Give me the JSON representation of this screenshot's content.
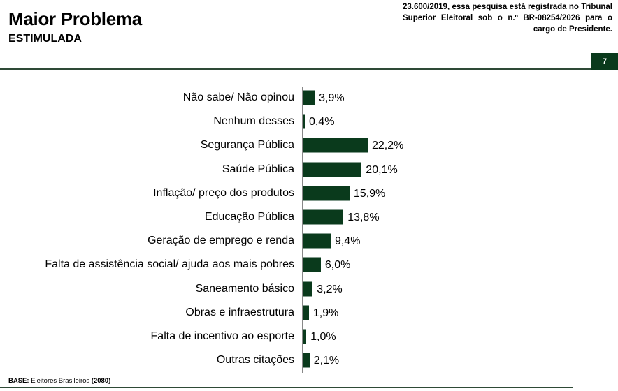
{
  "header": {
    "title": "Maior Problema",
    "subtitle": "ESTIMULADA",
    "registration_note": "23.600/2019, essa pesquisa está registrada no Tribunal Superior Eleitoral sob o n.º BR-08254/2026 para o cargo de Presidente.",
    "page_number": "7"
  },
  "footer": {
    "base_label": "BASE:",
    "base_text": "Eleitores Brasileiros",
    "base_count": "(2080)"
  },
  "colors": {
    "bar": "#0a3a1c",
    "rule": "#2e4a36"
  },
  "chart_data": {
    "type": "bar",
    "orientation": "horizontal",
    "categories": [
      "Não sabe/ Não opinou",
      "Nenhum desses",
      "Segurança Pública",
      "Saúde Pública",
      "Inflação/ preço dos produtos",
      "Educação Pública",
      "Geração de emprego e renda",
      "Falta de assistência social/ ajuda aos mais pobres",
      "Saneamento básico",
      "Obras e infraestrutura",
      "Falta de incentivo ao esporte",
      "Outras citações"
    ],
    "values": [
      3.9,
      0.4,
      22.2,
      20.1,
      15.9,
      13.8,
      9.4,
      6.0,
      3.2,
      1.9,
      1.0,
      2.1
    ],
    "value_labels": [
      "3,9%",
      "0,4%",
      "22,2%",
      "20,1%",
      "15,9%",
      "13,8%",
      "9,4%",
      "6,0%",
      "3,2%",
      "1,9%",
      "1,0%",
      "2,1%"
    ],
    "unit": "%",
    "grid": false,
    "legend": "none"
  }
}
